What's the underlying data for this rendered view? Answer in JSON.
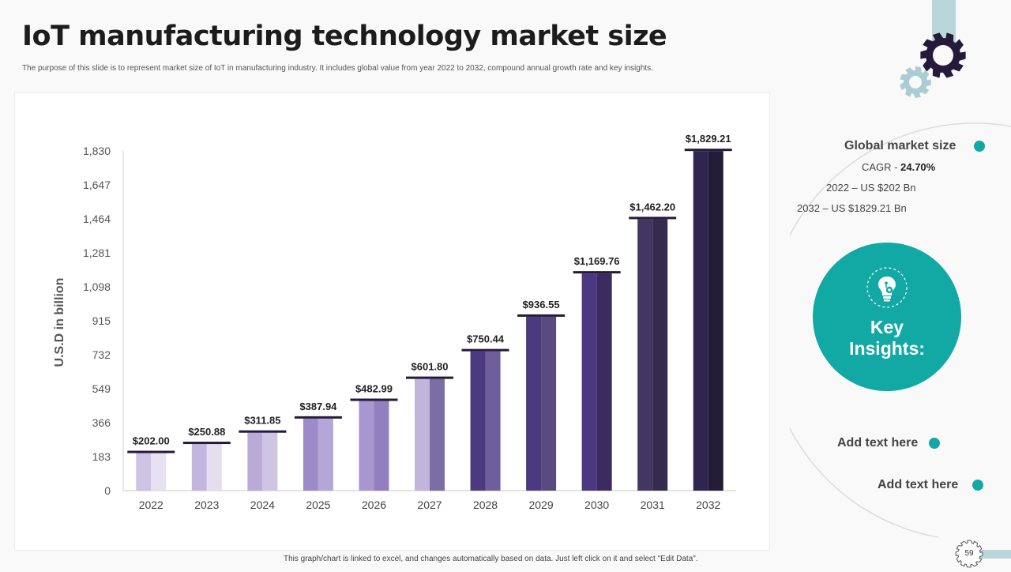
{
  "slide": {
    "title": "IoT manufacturing technology market size",
    "subtitle": "The purpose of this slide is to represent market size of IoT in manufacturing industry. It includes global value from year 2022 to 2032, compound annual growth rate and key insights.",
    "footnote": "This graph/chart is linked to excel, and changes automatically based on data. Just left click on it and select \"Edit Data\".",
    "page_number": "59"
  },
  "insights": {
    "global_label": "Global market size",
    "cagr_prefix": "CAGR - ",
    "cagr_value": "24.70%",
    "line_2022": "2022 – US $202 Bn",
    "line_2032": "2032 – US $1829.21 Bn",
    "key_line1": "Key",
    "key_line2": "Insights:",
    "add_text_1": "Add text here",
    "add_text_2": "Add text here",
    "icon": "lightbulb-gear-icon"
  },
  "colors": {
    "accent": "#12a9a5",
    "gear_dark": "#241b3a",
    "gear_light": "#a9cdd2"
  },
  "chart_data": {
    "type": "bar",
    "ylabel": "U.S.D in billion",
    "ylim": [
      0,
      1830
    ],
    "yticks": [
      0,
      183,
      366,
      549,
      732,
      915,
      1098,
      1281,
      1464,
      1647,
      1830
    ],
    "categories": [
      "2022",
      "2023",
      "2024",
      "2025",
      "2026",
      "2027",
      "2028",
      "2029",
      "2030",
      "2031",
      "2032"
    ],
    "values": [
      202.0,
      250.88,
      311.85,
      387.94,
      482.99,
      601.8,
      750.44,
      936.55,
      1169.76,
      1462.2,
      1829.21
    ],
    "value_labels": [
      "$202.00",
      "$250.88",
      "$311.85",
      "$387.94",
      "$482.99",
      "$601.80",
      "$750.44",
      "$936.55",
      "$1,169.76",
      "$1,462.20",
      "$1,829.21"
    ],
    "bar_colors_left": [
      "#cdc3e3",
      "#c3b6de",
      "#b9aad8",
      "#9d8bc9",
      "#a896d0",
      "#c1b5db",
      "#4b3a7e",
      "#4b3a7e",
      "#4c3880",
      "#433660",
      "#2f2650"
    ],
    "bar_colors_right": [
      "#e7e2f1",
      "#e4deef",
      "#cfc5e3",
      "#b4a6d6",
      "#917fc0",
      "#7b6ea4",
      "#6e5e9c",
      "#594b7f",
      "#3c2b5e",
      "#352b4d",
      "#221c36"
    ],
    "grid": false
  }
}
